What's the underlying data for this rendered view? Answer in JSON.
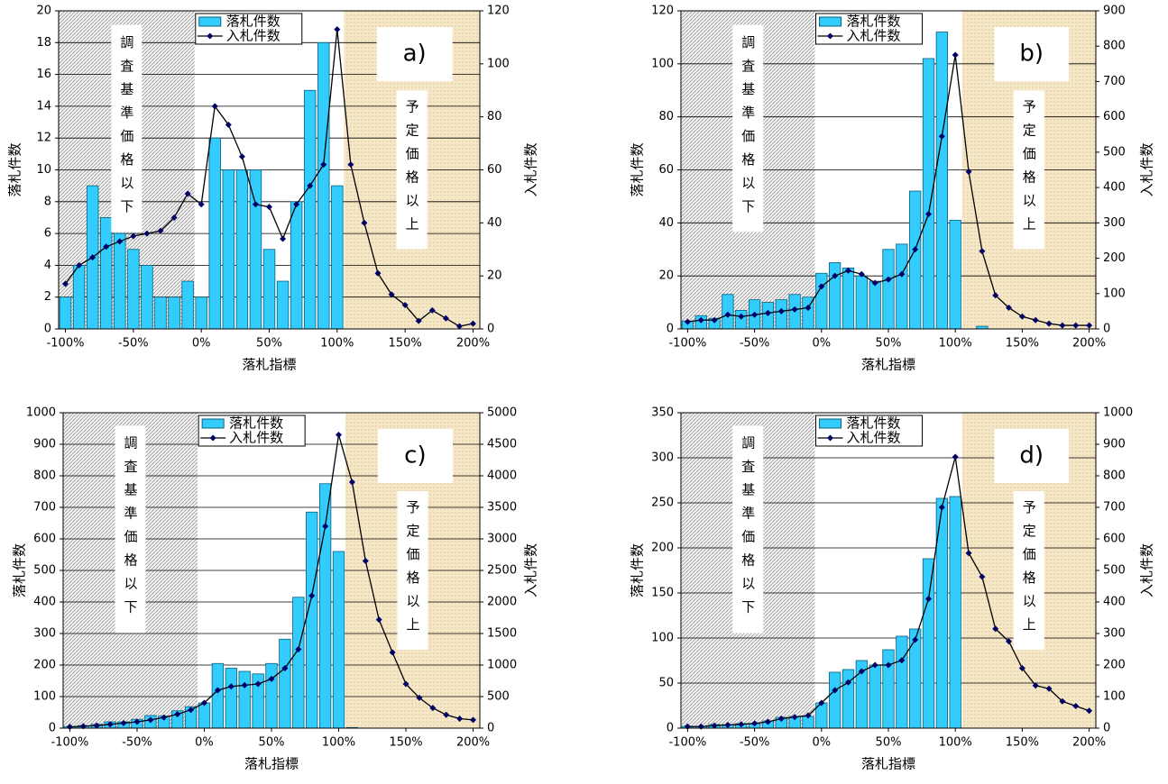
{
  "chart_data": [
    {
      "type": "combo",
      "panel_label": "a)",
      "x_label": "落札指標",
      "y_label": "落札件数",
      "y2_label": "入札件数",
      "x": [
        -100,
        -90,
        -80,
        -70,
        -60,
        -50,
        -40,
        -30,
        -20,
        -10,
        0,
        10,
        20,
        30,
        40,
        50,
        60,
        70,
        80,
        90,
        100,
        110,
        120,
        130,
        140,
        150,
        160,
        170,
        180,
        190,
        200
      ],
      "xlim": [
        -105,
        205
      ],
      "xticks": [
        {
          "value": -100,
          "label": "-100%"
        },
        {
          "value": -50,
          "label": "-50%"
        },
        {
          "value": 0,
          "label": "0%"
        },
        {
          "value": 50,
          "label": "50%"
        },
        {
          "value": 100,
          "label": "100%"
        },
        {
          "value": 150,
          "label": "150%"
        },
        {
          "value": 200,
          "label": "200%"
        }
      ],
      "ylim": [
        0,
        20
      ],
      "yticks": [
        0,
        2,
        4,
        6,
        8,
        10,
        12,
        14,
        16,
        18,
        20
      ],
      "y2lim": [
        0,
        120
      ],
      "y2ticks": [
        0,
        20,
        40,
        60,
        80,
        100,
        120
      ],
      "grid": true,
      "regions": [
        {
          "label": "調査基準価格以下",
          "from": -105,
          "to": -5
        },
        {
          "label": "予定価格以上",
          "from": 105,
          "to": 205
        }
      ],
      "series": [
        {
          "name": "落札件数",
          "kind": "bar",
          "color": "#33ccff",
          "values": [
            2,
            4,
            9,
            7,
            6,
            5,
            4,
            2,
            2,
            3,
            2,
            12,
            10,
            10,
            10,
            5,
            3,
            8,
            15,
            18,
            9,
            0,
            0,
            0,
            0,
            0,
            0,
            0,
            0,
            0,
            0
          ]
        },
        {
          "name": "入札件数",
          "kind": "line",
          "axis": "y2",
          "color": "#000066",
          "values": [
            17,
            24,
            27,
            31,
            33,
            35,
            36,
            37,
            42,
            51,
            47,
            84,
            77,
            65,
            47,
            46,
            34,
            47,
            54,
            62,
            113,
            62,
            40,
            21,
            13,
            9,
            3,
            7,
            4,
            1,
            2
          ]
        }
      ]
    },
    {
      "type": "combo",
      "panel_label": "b)",
      "x_label": "落札指標",
      "y_label": "落札件数",
      "y2_label": "入札件数",
      "x": [
        -100,
        -90,
        -80,
        -70,
        -60,
        -50,
        -40,
        -30,
        -20,
        -10,
        0,
        10,
        20,
        30,
        40,
        50,
        60,
        70,
        80,
        90,
        100,
        110,
        120,
        130,
        140,
        150,
        160,
        170,
        180,
        190,
        200
      ],
      "xlim": [
        -105,
        205
      ],
      "xticks": [
        {
          "value": -100,
          "label": "-100%"
        },
        {
          "value": -50,
          "label": "-50%"
        },
        {
          "value": 0,
          "label": "0%"
        },
        {
          "value": 50,
          "label": "50%"
        },
        {
          "value": 100,
          "label": "100%"
        },
        {
          "value": 150,
          "label": "150%"
        },
        {
          "value": 200,
          "label": "200%"
        }
      ],
      "ylim": [
        0,
        120
      ],
      "yticks": [
        0,
        20,
        40,
        60,
        80,
        100,
        120
      ],
      "y2lim": [
        0,
        900
      ],
      "y2ticks": [
        0,
        100,
        200,
        300,
        400,
        500,
        600,
        700,
        800,
        900
      ],
      "grid": true,
      "regions": [
        {
          "label": "調査基準価格以下",
          "from": -105,
          "to": -5
        },
        {
          "label": "予定価格以上",
          "from": 105,
          "to": 205
        }
      ],
      "series": [
        {
          "name": "落札件数",
          "kind": "bar",
          "color": "#33ccff",
          "values": [
            3,
            5,
            4,
            13,
            7,
            11,
            10,
            11,
            13,
            12,
            21,
            25,
            23,
            20,
            18,
            30,
            32,
            52,
            102,
            112,
            41,
            0,
            1,
            0,
            0,
            0,
            0,
            0,
            0,
            0,
            0
          ]
        },
        {
          "name": "入札件数",
          "kind": "line",
          "axis": "y2",
          "color": "#000066",
          "values": [
            20,
            25,
            25,
            40,
            35,
            40,
            45,
            50,
            55,
            60,
            120,
            150,
            165,
            155,
            130,
            140,
            155,
            225,
            325,
            545,
            775,
            445,
            220,
            95,
            60,
            35,
            25,
            15,
            10,
            10,
            10
          ]
        }
      ]
    },
    {
      "type": "combo",
      "panel_label": "c)",
      "x_label": "落札指標",
      "y_label": "落札件数",
      "y2_label": "入札件数",
      "x": [
        -100,
        -90,
        -80,
        -70,
        -60,
        -50,
        -40,
        -30,
        -20,
        -10,
        0,
        10,
        20,
        30,
        40,
        50,
        60,
        70,
        80,
        90,
        100,
        110,
        120,
        130,
        140,
        150,
        160,
        170,
        180,
        190,
        200
      ],
      "xlim": [
        -105,
        205
      ],
      "xticks": [
        {
          "value": -100,
          "label": "-100%"
        },
        {
          "value": -50,
          "label": "-50%"
        },
        {
          "value": 0,
          "label": "0%"
        },
        {
          "value": 50,
          "label": "50%"
        },
        {
          "value": 100,
          "label": "100%"
        },
        {
          "value": 150,
          "label": "150%"
        },
        {
          "value": 200,
          "label": "200%"
        }
      ],
      "ylim": [
        0,
        1000
      ],
      "yticks": [
        0,
        100,
        200,
        300,
        400,
        500,
        600,
        700,
        800,
        900,
        1000
      ],
      "y2lim": [
        0,
        5000
      ],
      "y2ticks": [
        0,
        500,
        1000,
        1500,
        2000,
        2500,
        3000,
        3500,
        4000,
        4500,
        5000
      ],
      "grid": true,
      "regions": [
        {
          "label": "調査基準価格以下",
          "from": -105,
          "to": -5
        },
        {
          "label": "予定価格以上",
          "from": 105,
          "to": 205
        }
      ],
      "series": [
        {
          "name": "落札件数",
          "kind": "bar",
          "color": "#33ccff",
          "values": [
            5,
            8,
            12,
            20,
            20,
            28,
            40,
            38,
            55,
            68,
            80,
            205,
            190,
            180,
            172,
            205,
            282,
            415,
            685,
            775,
            560,
            2,
            0,
            0,
            0,
            0,
            0,
            0,
            0,
            0,
            0
          ]
        },
        {
          "name": "入札件数",
          "kind": "line",
          "axis": "y2",
          "color": "#000066",
          "values": [
            20,
            30,
            40,
            60,
            80,
            100,
            130,
            170,
            220,
            290,
            400,
            600,
            660,
            680,
            700,
            780,
            950,
            1250,
            2100,
            3200,
            4650,
            3900,
            2650,
            1720,
            1200,
            700,
            480,
            320,
            210,
            150,
            130
          ]
        }
      ]
    },
    {
      "type": "combo",
      "panel_label": "d)",
      "x_label": "落札指標",
      "y_label": "落札件数",
      "y2_label": "入札件数",
      "x": [
        -100,
        -90,
        -80,
        -70,
        -60,
        -50,
        -40,
        -30,
        -20,
        -10,
        0,
        10,
        20,
        30,
        40,
        50,
        60,
        70,
        80,
        90,
        100,
        110,
        120,
        130,
        140,
        150,
        160,
        170,
        180,
        190,
        200
      ],
      "xlim": [
        -105,
        205
      ],
      "xticks": [
        {
          "value": -100,
          "label": "-100%"
        },
        {
          "value": -50,
          "label": "-50%"
        },
        {
          "value": 0,
          "label": "0%"
        },
        {
          "value": 50,
          "label": "50%"
        },
        {
          "value": 100,
          "label": "100%"
        },
        {
          "value": 150,
          "label": "150%"
        },
        {
          "value": 200,
          "label": "200%"
        }
      ],
      "ylim": [
        0,
        350
      ],
      "yticks": [
        0,
        50,
        100,
        150,
        200,
        250,
        300,
        350
      ],
      "y2lim": [
        0,
        1000
      ],
      "y2ticks": [
        0,
        100,
        200,
        300,
        400,
        500,
        600,
        700,
        800,
        900,
        1000
      ],
      "grid": true,
      "regions": [
        {
          "label": "調査基準価格以下",
          "from": -105,
          "to": -5
        },
        {
          "label": "予定価格以上",
          "from": 105,
          "to": 205
        }
      ],
      "series": [
        {
          "name": "落札件数",
          "kind": "bar",
          "color": "#33ccff",
          "values": [
            2,
            2,
            4,
            4,
            5,
            5,
            8,
            12,
            13,
            13,
            28,
            62,
            65,
            75,
            70,
            87,
            102,
            110,
            188,
            255,
            257,
            0,
            0,
            0,
            0,
            0,
            0,
            0,
            0,
            0,
            0
          ]
        },
        {
          "name": "入札件数",
          "kind": "line",
          "axis": "y2",
          "color": "#000066",
          "values": [
            5,
            5,
            8,
            10,
            12,
            15,
            20,
            30,
            35,
            40,
            80,
            120,
            145,
            180,
            200,
            200,
            215,
            280,
            410,
            700,
            860,
            555,
            480,
            315,
            275,
            190,
            135,
            125,
            85,
            70,
            55
          ]
        }
      ]
    }
  ]
}
